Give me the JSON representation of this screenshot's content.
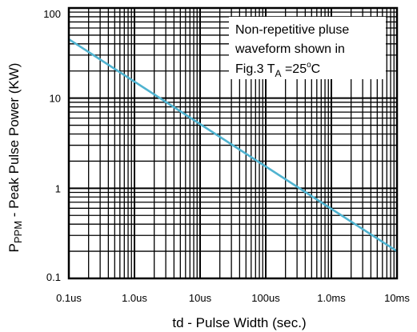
{
  "chart_data": {
    "type": "line",
    "x_scale": "log",
    "y_scale": "log",
    "grid": true,
    "xlim_seconds": [
      1e-07,
      0.01
    ],
    "ylim_kw": [
      0.1,
      100
    ],
    "x_tick_labels": [
      "0.1us",
      "1.0us",
      "10us",
      "100us",
      "1.0ms",
      "10ms"
    ],
    "y_tick_labels": [
      "0.1",
      "1",
      "10",
      "100"
    ],
    "xlabel": "td - Pulse Width (sec.)",
    "ylabel": {
      "main": "P",
      "subscript": "PPM",
      "rest": " - Peak Pulse Power (KW)"
    },
    "annotation": {
      "line1": "Non-repetitive pluse",
      "line2": "waveform shown in",
      "line3_prefix": "Fig.3 T",
      "line3_sub": "A",
      "line3_mid": " =25",
      "line3_sup": "o",
      "line3_suffix": "C"
    },
    "series": [
      {
        "x": [
          1e-07,
          0.01
        ],
        "y": [
          45,
          0.2
        ],
        "color": "#4fb3d0"
      }
    ]
  }
}
